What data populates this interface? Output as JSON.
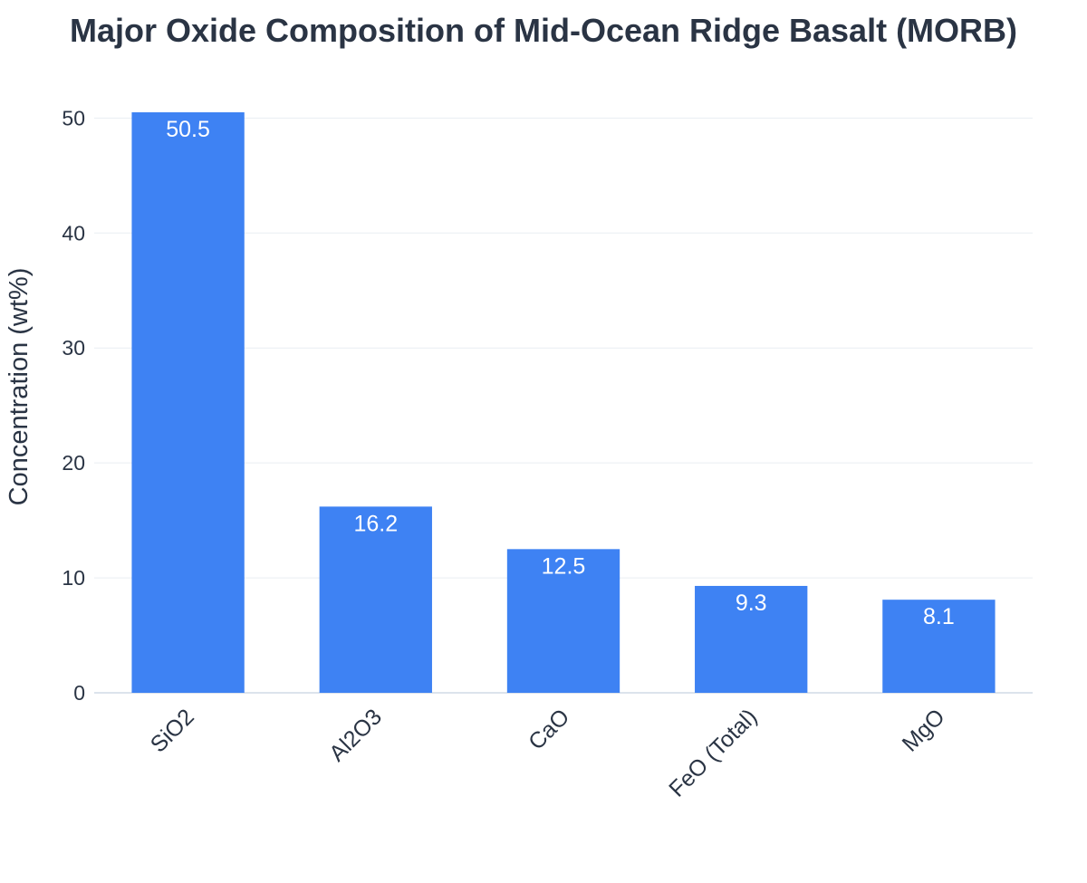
{
  "chart_data": {
    "type": "bar",
    "title": "Major Oxide Composition of Mid-Ocean Ridge Basalt (MORB)",
    "xlabel": "",
    "ylabel": "Concentration (wt%)",
    "categories": [
      "SiO2",
      "Al2O3",
      "CaO",
      "FeO (Total)",
      "MgO"
    ],
    "values": [
      50.5,
      16.2,
      12.5,
      9.3,
      8.1
    ],
    "data_labels": [
      "50.5",
      "16.2",
      "12.5",
      "9.3",
      "8.1"
    ],
    "ylim": [
      0,
      50.5
    ],
    "yticks": [
      0,
      10,
      20,
      30,
      40,
      50
    ],
    "ytick_labels": [
      "0",
      "10",
      "20",
      "30",
      "40",
      "50"
    ],
    "grid": true,
    "legend": "none",
    "x_tick_rotation": -45,
    "colors": {
      "bar": "#3e82f3",
      "title": "#2a3444",
      "text": "#2a3444",
      "data_label": "#ffffff",
      "grid": "#e9edf2"
    }
  }
}
